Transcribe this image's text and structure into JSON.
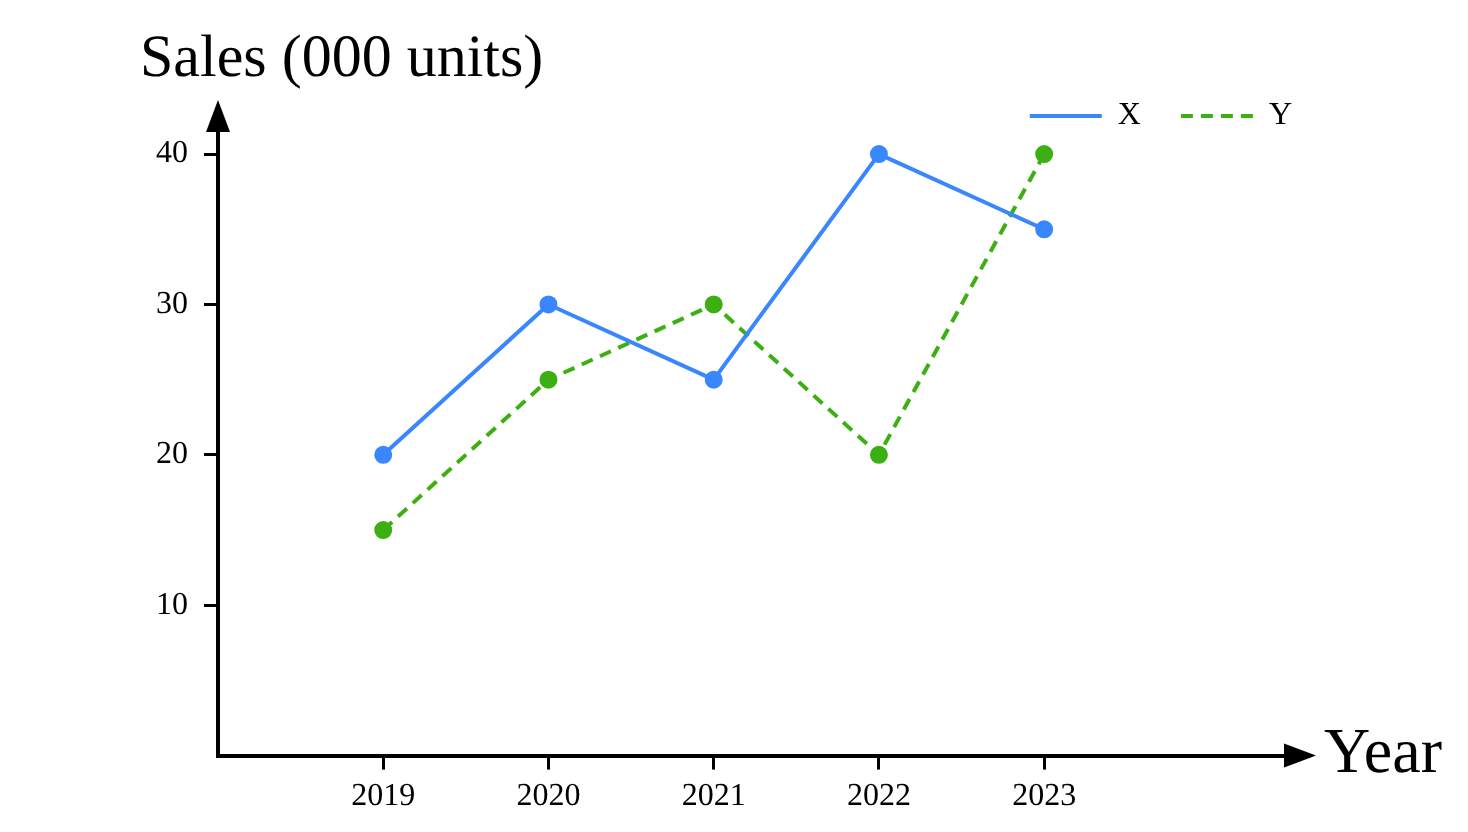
{
  "chart_data": {
    "type": "line",
    "title": "Sales (000 units)",
    "xlabel": "Year",
    "x": [
      2019,
      2020,
      2021,
      2022,
      2023
    ],
    "xlim": [
      2018,
      2024.5
    ],
    "xticks": [
      2019,
      2020,
      2021,
      2022,
      2023
    ],
    "ylim": [
      0,
      42
    ],
    "yticks": [
      10,
      20,
      30,
      40
    ],
    "series": [
      {
        "name": "X",
        "color": "#3a86ff",
        "values": [
          20,
          30,
          25,
          40,
          35
        ],
        "line_style": "solid"
      },
      {
        "name": "Y",
        "color": "#3cb012",
        "values": [
          15,
          25,
          30,
          20,
          40
        ],
        "line_style": "dashed"
      }
    ],
    "marker": "circle",
    "grid": false,
    "legend": "top right"
  }
}
